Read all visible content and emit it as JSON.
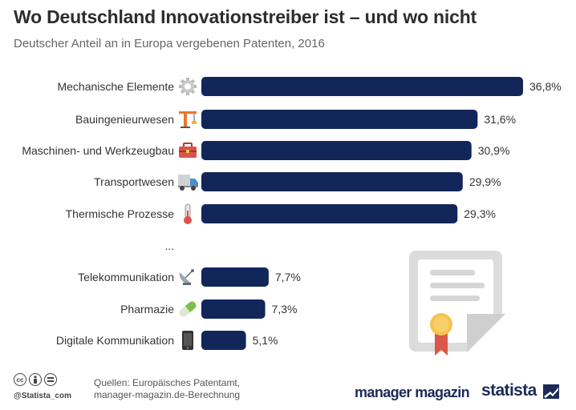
{
  "header": {
    "title": "Wo Deutschland Innovationstreiber ist – und wo nicht",
    "subtitle": "Deutscher Anteil an in Europa vergebenen Patenten, 2016"
  },
  "chart_data": {
    "type": "bar",
    "orientation": "horizontal",
    "title": "Wo Deutschland Innovationstreiber ist – und wo nicht",
    "subtitle": "Deutscher Anteil an in Europa vergebenen Patenten, 2016",
    "unit": "%",
    "xlim": [
      0,
      36.8
    ],
    "gap_label": "...",
    "categories": [
      "Mechanische Elemente",
      "Bauingenieurwesen",
      "Maschinen- und Werkzeugbau",
      "Transportwesen",
      "Thermische Prozesse",
      "Telekommunikation",
      "Pharmazie",
      "Digitale Kommunikation"
    ],
    "values": [
      36.8,
      31.6,
      30.9,
      29.9,
      29.3,
      7.7,
      7.3,
      5.1
    ],
    "value_labels": [
      "36,8%",
      "31,6%",
      "30,9%",
      "29,9%",
      "29,3%",
      "7,7%",
      "7,3%",
      "5,1%"
    ],
    "icons": [
      "gear-icon",
      "crane-icon",
      "toolbox-icon",
      "truck-icon",
      "thermometer-icon",
      "satellite-dish-icon",
      "pill-icon",
      "smartphone-icon"
    ]
  },
  "colors": {
    "bar": "#13265a",
    "title": "#2d2d2d",
    "subtitle": "#666666",
    "brand": "#1c2b57"
  },
  "footer": {
    "handle": "@Statista_com",
    "sources_line1": "Quellen: Europäisches Patentamt,",
    "sources_line2": "manager-magazin.de-Berechnung",
    "logo_partner": "manager magazin",
    "logo_statista": "statista",
    "cc_icons": [
      "cc-icon",
      "by-icon",
      "nd-icon"
    ]
  }
}
